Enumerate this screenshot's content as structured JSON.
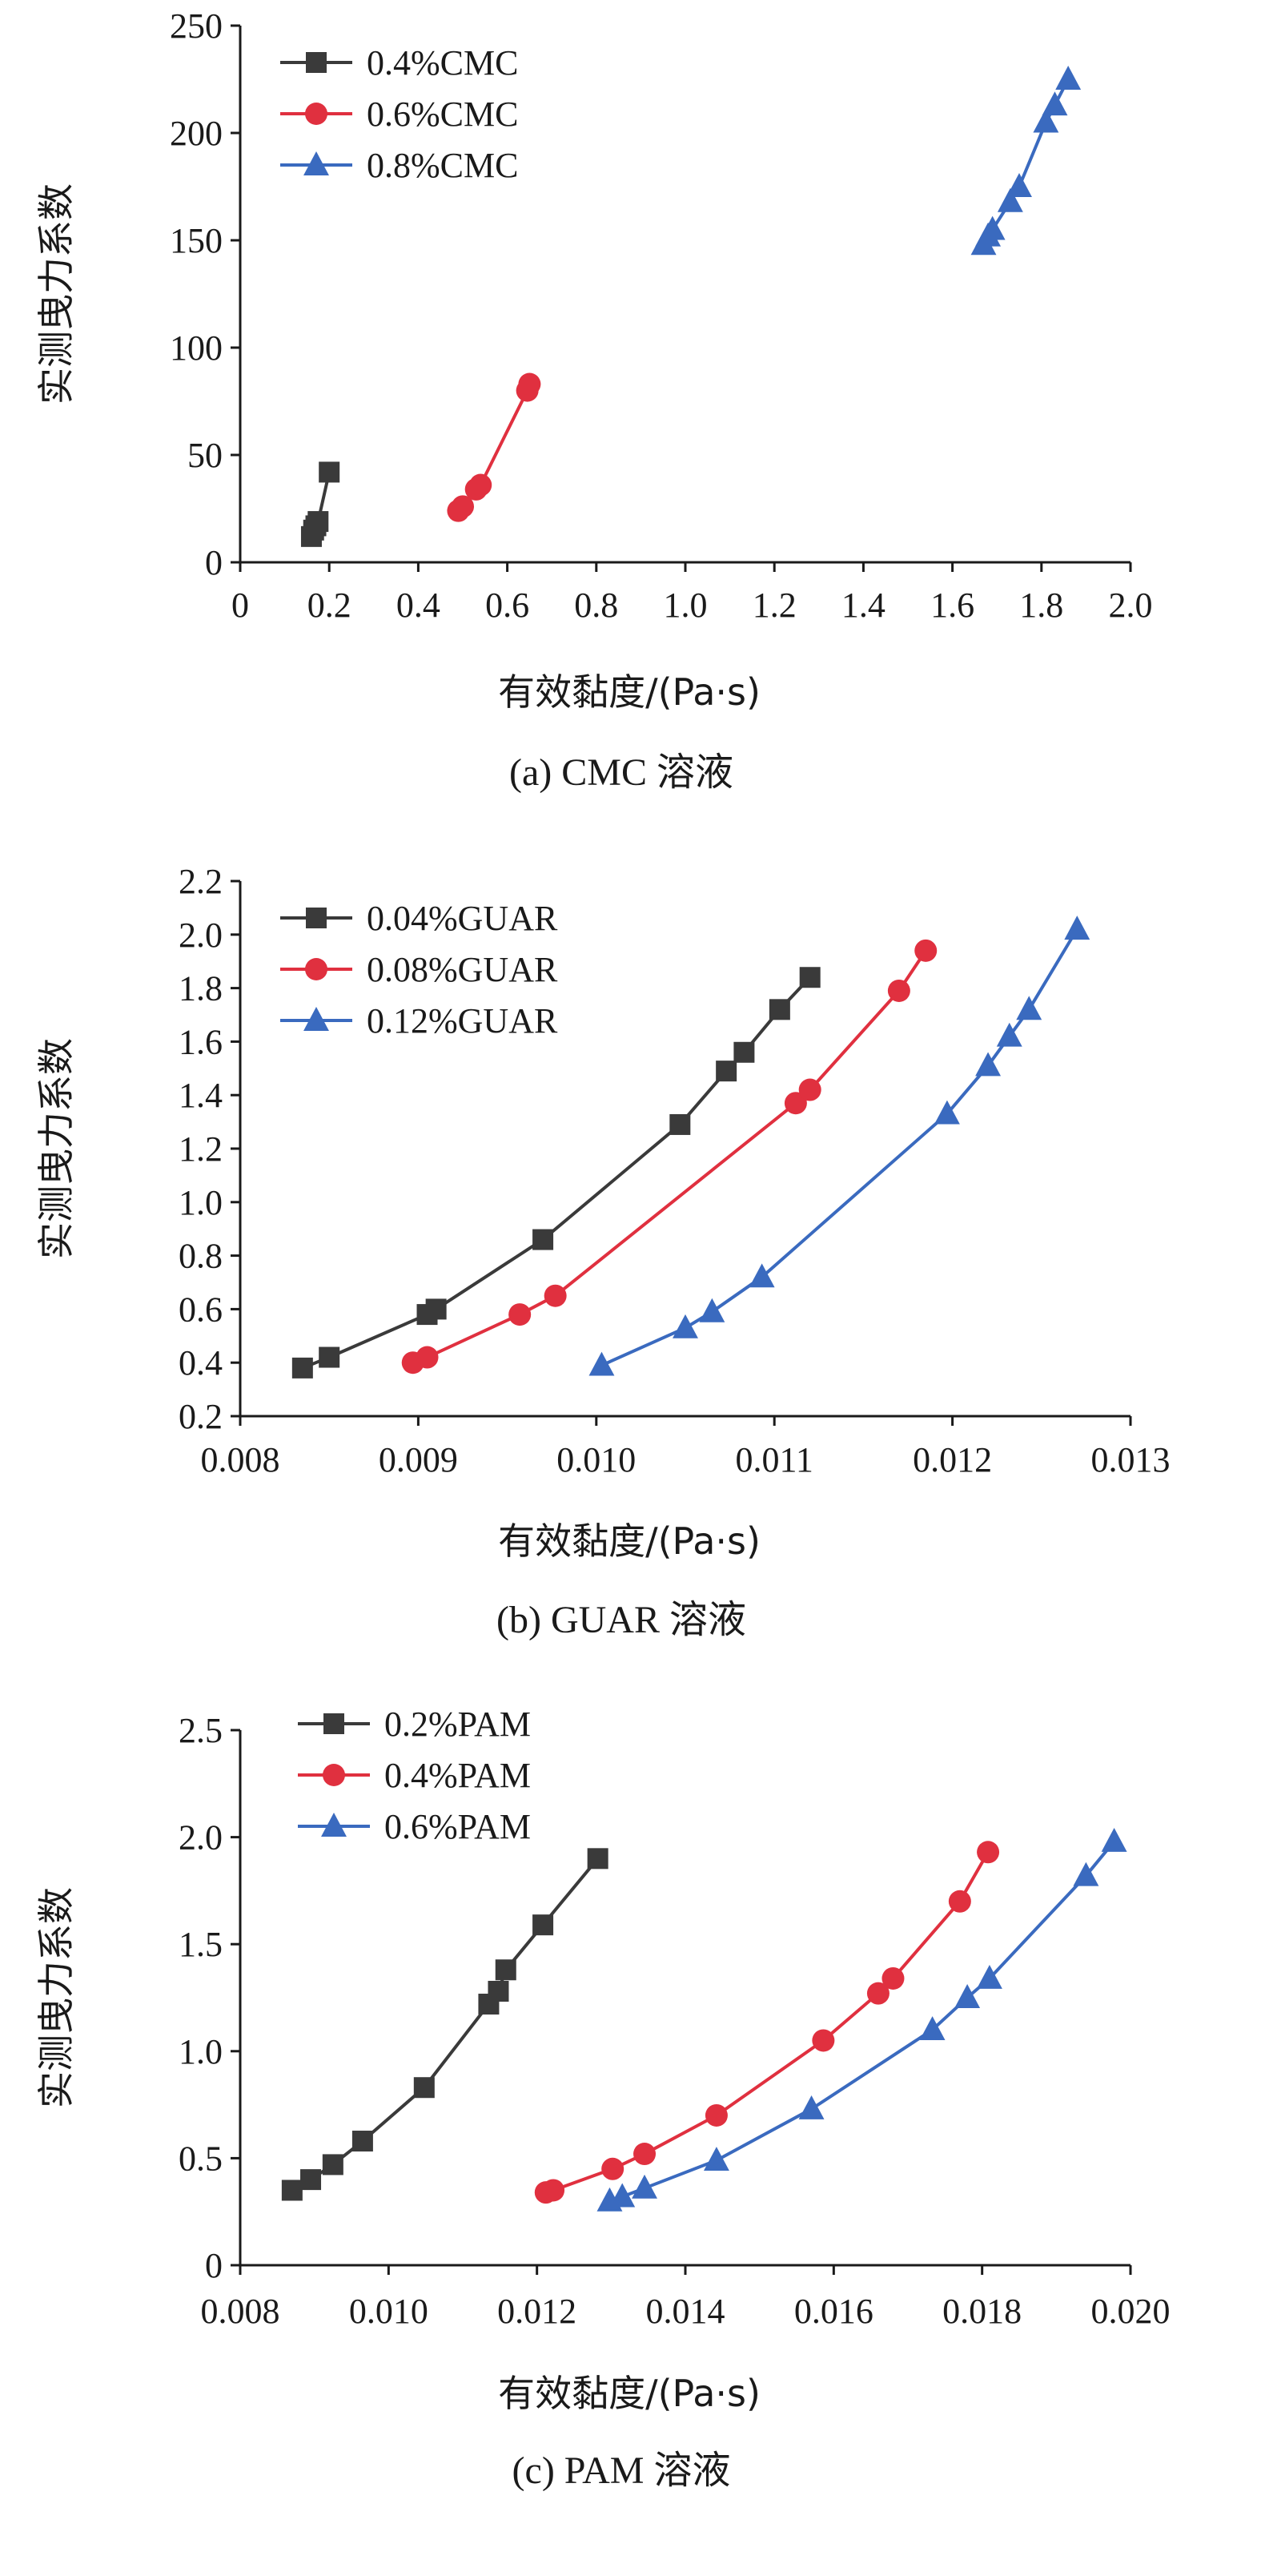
{
  "figure": {
    "background": "#ffffff"
  },
  "chart_data": [
    {
      "type": "line",
      "caption": "(a) CMC 溶液",
      "xlabel": "有效黏度/(Pa·s)",
      "ylabel": "实测曳力系数",
      "xlim": [
        0,
        2.0
      ],
      "ylim": [
        0,
        250
      ],
      "xticks": [
        0,
        0.2,
        0.4,
        0.6,
        0.8,
        1.0,
        1.2,
        1.4,
        1.6,
        1.8,
        2.0
      ],
      "xtick_labels": [
        "0",
        "0.2",
        "0.4",
        "0.6",
        "0.8",
        "1.0",
        "1.2",
        "1.4",
        "1.6",
        "1.8",
        "2.0"
      ],
      "yticks": [
        0,
        50,
        100,
        150,
        200,
        250
      ],
      "ytick_labels": [
        "0",
        "50",
        "100",
        "150",
        "200",
        "250"
      ],
      "legend_position": "top-left",
      "series": [
        {
          "name": "0.4%CMC",
          "color": "#3a3a3a",
          "marker": "square",
          "x": [
            0.16,
            0.165,
            0.17,
            0.175,
            0.2
          ],
          "y": [
            12,
            15,
            17,
            19,
            42
          ]
        },
        {
          "name": "0.6%CMC",
          "color": "#e0303f",
          "marker": "circle",
          "x": [
            0.49,
            0.5,
            0.53,
            0.54,
            0.645,
            0.65
          ],
          "y": [
            24,
            26,
            34,
            36,
            80,
            83
          ]
        },
        {
          "name": "0.8%CMC",
          "color": "#3a6abf",
          "marker": "triangle",
          "x": [
            1.67,
            1.68,
            1.69,
            1.73,
            1.75,
            1.81,
            1.83,
            1.86
          ],
          "y": [
            148,
            152,
            155,
            168,
            175,
            205,
            213,
            225
          ]
        }
      ]
    },
    {
      "type": "line",
      "caption": "(b) GUAR 溶液",
      "xlabel": "有效黏度/(Pa·s)",
      "ylabel": "实测曳力系数",
      "xlim": [
        0.008,
        0.013
      ],
      "ylim": [
        0.2,
        2.2
      ],
      "xticks": [
        0.008,
        0.009,
        0.01,
        0.011,
        0.012,
        0.013
      ],
      "xtick_labels": [
        "0.008",
        "0.009",
        "0.010",
        "0.011",
        "0.012",
        "0.013"
      ],
      "yticks": [
        0.2,
        0.4,
        0.6,
        0.8,
        1.0,
        1.2,
        1.4,
        1.6,
        1.8,
        2.0,
        2.2
      ],
      "ytick_labels": [
        "0.2",
        "0.4",
        "0.6",
        "0.8",
        "1.0",
        "1.2",
        "1.4",
        "1.6",
        "1.8",
        "2.0",
        "2.2"
      ],
      "legend_position": "top-left",
      "series": [
        {
          "name": "0.04%GUAR",
          "color": "#3a3a3a",
          "marker": "square",
          "x": [
            0.00835,
            0.0085,
            0.00905,
            0.0091,
            0.0097,
            0.01047,
            0.01073,
            0.01083,
            0.01103,
            0.0112
          ],
          "y": [
            0.38,
            0.42,
            0.58,
            0.6,
            0.86,
            1.29,
            1.49,
            1.56,
            1.72,
            1.84
          ]
        },
        {
          "name": "0.08%GUAR",
          "color": "#e0303f",
          "marker": "circle",
          "x": [
            0.00897,
            0.00905,
            0.00957,
            0.00977,
            0.01112,
            0.0112,
            0.0117,
            0.01185
          ],
          "y": [
            0.4,
            0.42,
            0.58,
            0.65,
            1.37,
            1.42,
            1.79,
            1.94
          ]
        },
        {
          "name": "0.12%GUAR",
          "color": "#3a6abf",
          "marker": "triangle",
          "x": [
            0.01003,
            0.0105,
            0.01065,
            0.01093,
            0.01197,
            0.0122,
            0.01232,
            0.01243,
            0.0127
          ],
          "y": [
            0.39,
            0.53,
            0.59,
            0.72,
            1.33,
            1.51,
            1.62,
            1.72,
            2.02
          ]
        }
      ]
    },
    {
      "type": "line",
      "caption": "(c) PAM 溶液",
      "xlabel": "有效黏度/(Pa·s)",
      "ylabel": "实测曳力系数",
      "xlim": [
        0.008,
        0.02
      ],
      "ylim": [
        0,
        2.5
      ],
      "xticks": [
        0.008,
        0.01,
        0.012,
        0.014,
        0.016,
        0.018,
        0.02
      ],
      "xtick_labels": [
        "0.008",
        "0.010",
        "0.012",
        "0.014",
        "0.016",
        "0.018",
        "0.020"
      ],
      "yticks": [
        0,
        0.5,
        1.0,
        1.5,
        2.0,
        2.5
      ],
      "ytick_labels": [
        "0",
        "0.5",
        "1.0",
        "1.5",
        "2.0",
        "2.5"
      ],
      "legend_position": "top-left",
      "series": [
        {
          "name": "0.2%PAM",
          "color": "#3a3a3a",
          "marker": "square",
          "x": [
            0.0087,
            0.00895,
            0.00925,
            0.00965,
            0.01048,
            0.01135,
            0.01148,
            0.01158,
            0.01208,
            0.01282
          ],
          "y": [
            0.35,
            0.4,
            0.47,
            0.58,
            0.83,
            1.22,
            1.28,
            1.38,
            1.59,
            1.9
          ]
        },
        {
          "name": "0.4%PAM",
          "color": "#e0303f",
          "marker": "circle",
          "x": [
            0.01212,
            0.01222,
            0.01302,
            0.01345,
            0.01442,
            0.01586,
            0.0166,
            0.0168,
            0.0177,
            0.01808
          ],
          "y": [
            0.34,
            0.35,
            0.45,
            0.52,
            0.7,
            1.05,
            1.27,
            1.34,
            1.7,
            1.93
          ]
        },
        {
          "name": "0.6%PAM",
          "color": "#3a6abf",
          "marker": "triangle",
          "x": [
            0.01298,
            0.01315,
            0.01345,
            0.01442,
            0.0157,
            0.01733,
            0.0178,
            0.0181,
            0.0194,
            0.01978
          ],
          "y": [
            0.3,
            0.32,
            0.36,
            0.49,
            0.73,
            1.1,
            1.25,
            1.34,
            1.82,
            1.98
          ]
        }
      ]
    }
  ]
}
